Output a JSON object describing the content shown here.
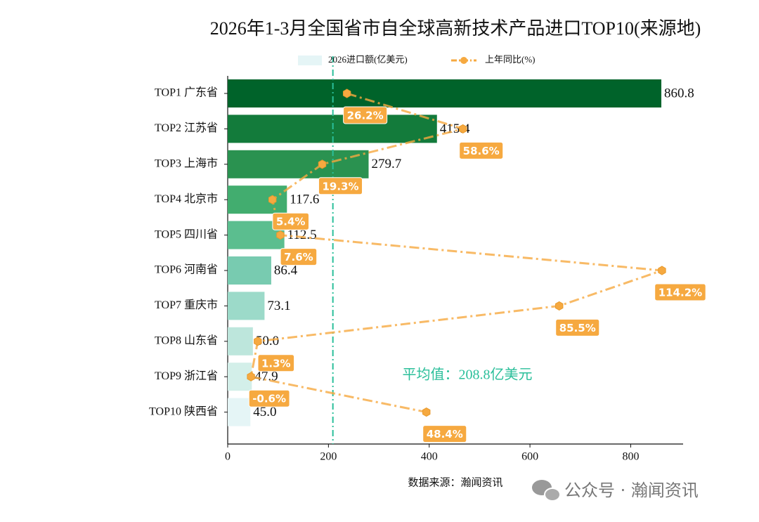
{
  "chart_data": {
    "type": "bar",
    "title": "2026年1-3月全国省市自全球高新技术产品进口TOP10(来源地)",
    "categories": [
      "TOP1 广东省",
      "TOP2 江苏省",
      "TOP3 上海市",
      "TOP4 北京市",
      "TOP5 四川省",
      "TOP6 河南省",
      "TOP7 重庆市",
      "TOP8 山东省",
      "TOP9 浙江省",
      "TOP10 陕西省"
    ],
    "series": [
      {
        "name": "2026进口额(亿美元)",
        "type": "bar",
        "legend_color": "#e5f5f6",
        "colors": [
          "#00632a",
          "#137b3b",
          "#2a9250",
          "#42ad6f",
          "#5bbe8f",
          "#78cbb0",
          "#9cdac9",
          "#bde6dc",
          "#d3efe9",
          "#e5f5f6"
        ],
        "values": [
          860.8,
          415.4,
          279.7,
          117.6,
          112.5,
          86.4,
          73.1,
          50.0,
          47.9,
          45.0
        ],
        "value_labels": [
          "860.8",
          "415.4",
          "279.7",
          "117.6",
          "112.5",
          "86.4",
          "73.1",
          "50.0",
          "47.9",
          "45.0"
        ]
      },
      {
        "name": "上年同比(%)",
        "type": "line",
        "axis": "x2",
        "color": "#f6a940",
        "values": [
          26.2,
          58.6,
          19.3,
          5.4,
          7.6,
          114.2,
          85.5,
          1.3,
          -0.6,
          48.4
        ],
        "value_labels": [
          "26.2%",
          "58.6%",
          "19.3%",
          "5.4%",
          "7.6%",
          "114.2%",
          "85.5%",
          "1.3%",
          "-0.6%",
          "48.4%"
        ]
      }
    ],
    "xlim": [
      0,
      904
    ],
    "xticks": [
      0,
      200,
      400,
      600,
      800
    ],
    "x2lim": [
      -7.1,
      120.1
    ],
    "mean": 208.8,
    "mean_label": "平均值：208.8亿美元",
    "mean_color": "#2bbf9a",
    "legend": "top",
    "source": "数据来源：瀚闻资讯",
    "watermark": "公众号 · 瀚闻资讯"
  }
}
